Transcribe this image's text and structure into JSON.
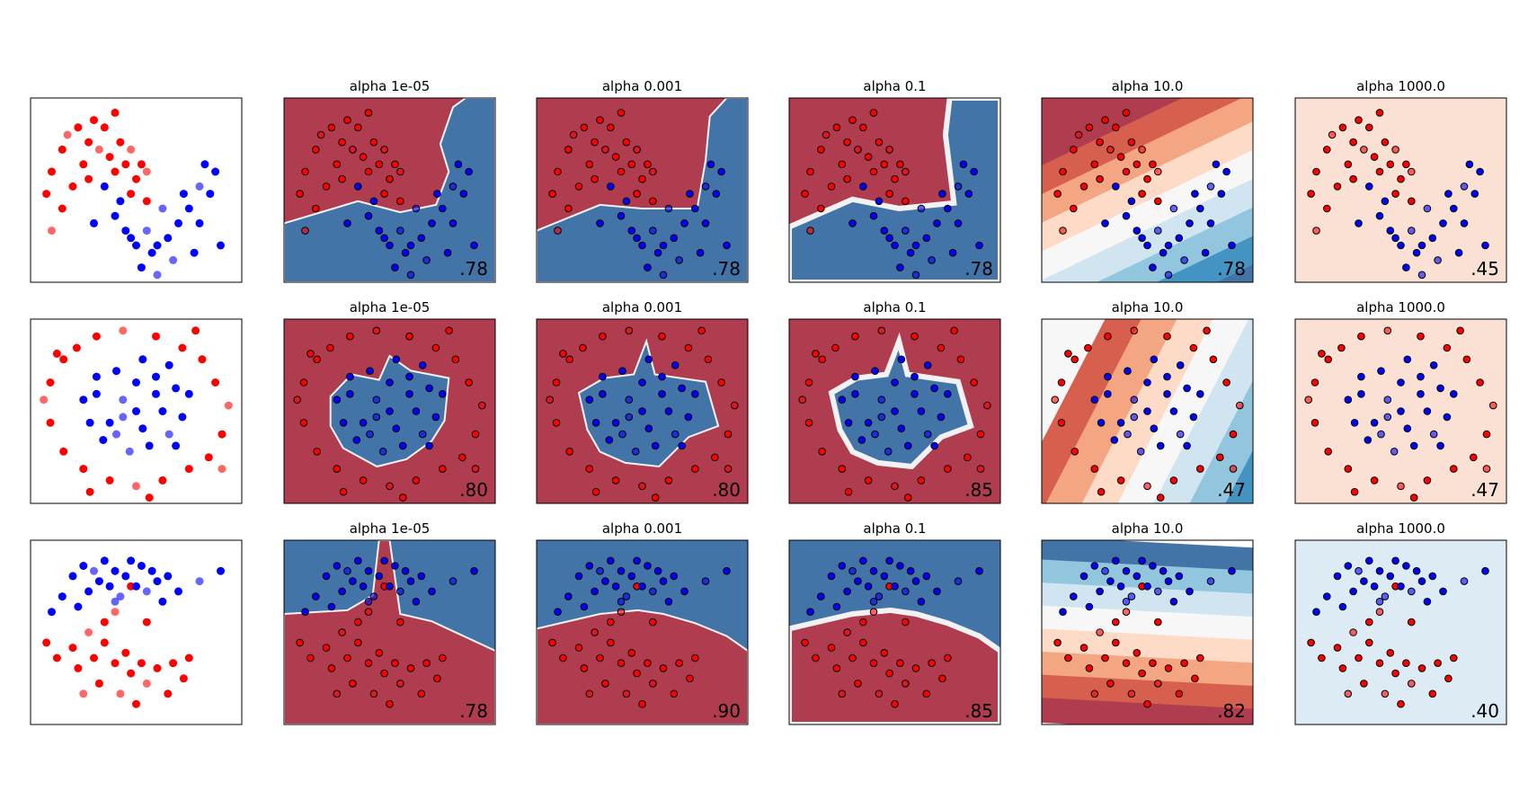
{
  "figure": {
    "colors": {
      "red_point": "#ff0000",
      "blue_point": "#0000ff",
      "strong_red": "#b03c4f",
      "strong_blue": "#4374a8",
      "boundary": "#f2f2f2",
      "light_red": "#fbe1d4",
      "light_blue": "#dcebf4"
    },
    "titles": [
      "alpha 1e-05",
      "alpha 0.001",
      "alpha 0.1",
      "alpha 10.0",
      "alpha 1000.0"
    ]
  },
  "chart_data": [
    {
      "type": "scatter",
      "dataset": "moons",
      "grid": false,
      "legend": "none",
      "xlim": [
        -1.6,
        2.4
      ],
      "ylim": [
        -1.0,
        1.5
      ],
      "series": [
        {
          "class": "red",
          "points": [
            [
              -1.3,
              0.2
            ],
            [
              -1.2,
              0.5
            ],
            [
              -1.0,
              0.8
            ],
            [
              -1.0,
              0.0
            ],
            [
              -0.9,
              1.0
            ],
            [
              -0.7,
              1.1
            ],
            [
              -0.6,
              0.6
            ],
            [
              -0.5,
              0.9
            ],
            [
              -0.4,
              1.2
            ],
            [
              -0.3,
              0.8
            ],
            [
              -0.2,
              1.1
            ],
            [
              0.0,
              1.3
            ],
            [
              0.1,
              0.9
            ],
            [
              0.2,
              0.6
            ],
            [
              0.3,
              0.8
            ],
            [
              0.4,
              0.4
            ],
            [
              0.5,
              0.6
            ],
            [
              0.6,
              0.1
            ],
            [
              -0.8,
              0.3
            ],
            [
              -1.2,
              -0.3
            ],
            [
              0.0,
              0.5
            ],
            [
              -0.5,
              0.4
            ],
            [
              0.3,
              0.2
            ],
            [
              -0.1,
              0.7
            ],
            [
              0.6,
              0.5
            ]
          ]
        },
        {
          "class": "blue",
          "points": [
            [
              -0.2,
              0.3
            ],
            [
              0.0,
              -0.1
            ],
            [
              0.2,
              -0.3
            ],
            [
              0.4,
              -0.5
            ],
            [
              0.6,
              -0.3
            ],
            [
              0.8,
              -0.5
            ],
            [
              1.0,
              -0.4
            ],
            [
              1.2,
              -0.2
            ],
            [
              1.4,
              0.0
            ],
            [
              1.6,
              0.3
            ],
            [
              1.7,
              0.6
            ],
            [
              1.8,
              0.2
            ],
            [
              1.9,
              0.5
            ],
            [
              1.3,
              0.2
            ],
            [
              0.9,
              0.0
            ],
            [
              0.7,
              -0.6
            ],
            [
              0.5,
              -0.8
            ],
            [
              0.3,
              -0.4
            ],
            [
              1.5,
              -0.6
            ],
            [
              1.1,
              -0.7
            ],
            [
              -0.4,
              -0.2
            ],
            [
              0.1,
              0.1
            ],
            [
              1.6,
              -0.2
            ],
            [
              2.0,
              -0.5
            ],
            [
              0.8,
              -0.9
            ]
          ]
        }
      ],
      "panels": [
        {
          "title": "alpha 1e-05",
          "score": ".78",
          "style": "moons_hard"
        },
        {
          "title": "alpha 0.001",
          "score": ".78",
          "style": "moons_hard"
        },
        {
          "title": "alpha 0.1",
          "score": ".78",
          "style": "moons_soft"
        },
        {
          "title": "alpha 10.0",
          "score": ".78",
          "style": "moons_bands"
        },
        {
          "title": "alpha 1000.0",
          "score": ".45",
          "style": "flat_red"
        }
      ]
    },
    {
      "type": "scatter",
      "dataset": "circles",
      "grid": false,
      "legend": "none",
      "xlim": [
        -1.6,
        1.6
      ],
      "ylim": [
        -1.6,
        1.6
      ],
      "series": [
        {
          "class": "red",
          "points": [
            [
              -1.3,
              0.5
            ],
            [
              -1.1,
              0.9
            ],
            [
              -0.9,
              1.1
            ],
            [
              -0.6,
              1.3
            ],
            [
              -0.2,
              1.4
            ],
            [
              0.3,
              1.3
            ],
            [
              0.7,
              1.1
            ],
            [
              1.0,
              0.9
            ],
            [
              1.2,
              0.5
            ],
            [
              1.4,
              0.1
            ],
            [
              1.3,
              -0.4
            ],
            [
              1.1,
              -0.8
            ],
            [
              0.8,
              -1.0
            ],
            [
              0.4,
              -1.2
            ],
            [
              0.0,
              -1.3
            ],
            [
              -0.4,
              -1.2
            ],
            [
              -0.8,
              -1.0
            ],
            [
              -1.1,
              -0.7
            ],
            [
              -1.3,
              -0.2
            ],
            [
              -1.4,
              0.2
            ],
            [
              -0.7,
              -1.4
            ],
            [
              0.2,
              -1.5
            ],
            [
              0.9,
              1.4
            ],
            [
              -1.2,
              1.0
            ],
            [
              1.3,
              -1.0
            ]
          ]
        },
        {
          "class": "blue",
          "points": [
            [
              -0.8,
              0.2
            ],
            [
              -0.6,
              0.6
            ],
            [
              -0.4,
              -0.2
            ],
            [
              -0.3,
              0.7
            ],
            [
              -0.2,
              0.2
            ],
            [
              0.0,
              0.5
            ],
            [
              0.1,
              -0.3
            ],
            [
              0.3,
              0.6
            ],
            [
              0.4,
              0.0
            ],
            [
              0.5,
              -0.4
            ],
            [
              0.6,
              0.4
            ],
            [
              0.7,
              -0.1
            ],
            [
              -0.5,
              -0.5
            ],
            [
              0.2,
              -0.6
            ],
            [
              -0.1,
              -0.7
            ],
            [
              0.8,
              0.3
            ],
            [
              -0.7,
              -0.2
            ],
            [
              0.0,
              0.0
            ],
            [
              0.3,
              0.3
            ],
            [
              -0.3,
              -0.4
            ],
            [
              0.5,
              0.8
            ],
            [
              -0.6,
              0.3
            ],
            [
              0.6,
              -0.6
            ],
            [
              0.1,
              0.9
            ],
            [
              -0.2,
              -0.1
            ]
          ]
        }
      ],
      "panels": [
        {
          "title": "alpha 1e-05",
          "score": ".80",
          "style": "circles_hard"
        },
        {
          "title": "alpha 0.001",
          "score": ".80",
          "style": "circles_hard"
        },
        {
          "title": "alpha 0.1",
          "score": ".85",
          "style": "circles_soft"
        },
        {
          "title": "alpha 10.0",
          "score": ".47",
          "style": "circles_bands"
        },
        {
          "title": "alpha 1000.0",
          "score": ".47",
          "style": "flat_red"
        }
      ]
    },
    {
      "type": "scatter",
      "dataset": "linear",
      "grid": false,
      "legend": "none",
      "xlim": [
        -1.6,
        2.4
      ],
      "ylim": [
        -2.2,
        1.4
      ],
      "series": [
        {
          "class": "red",
          "points": [
            [
              -1.3,
              -0.6
            ],
            [
              -1.1,
              -0.9
            ],
            [
              -0.8,
              -0.7
            ],
            [
              -0.7,
              -1.1
            ],
            [
              -0.5,
              -0.4
            ],
            [
              -0.4,
              -0.9
            ],
            [
              -0.3,
              -1.4
            ],
            [
              -0.2,
              -0.6
            ],
            [
              0.0,
              -1.0
            ],
            [
              0.1,
              -1.6
            ],
            [
              0.2,
              -0.8
            ],
            [
              0.3,
              -1.2
            ],
            [
              0.4,
              -1.8
            ],
            [
              0.5,
              -1.0
            ],
            [
              0.6,
              -1.4
            ],
            [
              0.8,
              -1.1
            ],
            [
              1.0,
              -1.6
            ],
            [
              1.1,
              -1.0
            ],
            [
              1.3,
              -1.3
            ],
            [
              0.0,
              0.0
            ],
            [
              0.3,
              0.5
            ],
            [
              -0.2,
              -0.2
            ],
            [
              0.6,
              -0.2
            ],
            [
              1.4,
              -0.9
            ],
            [
              -0.6,
              -1.6
            ]
          ]
        },
        {
          "class": "blue",
          "points": [
            [
              -1.0,
              0.3
            ],
            [
              -0.8,
              0.7
            ],
            [
              -0.6,
              0.9
            ],
            [
              -0.5,
              0.4
            ],
            [
              -0.4,
              0.8
            ],
            [
              -0.3,
              0.6
            ],
            [
              -0.2,
              1.0
            ],
            [
              -0.1,
              0.5
            ],
            [
              0.0,
              0.8
            ],
            [
              0.1,
              0.3
            ],
            [
              0.2,
              0.7
            ],
            [
              0.3,
              1.0
            ],
            [
              0.4,
              0.5
            ],
            [
              0.5,
              0.9
            ],
            [
              0.6,
              0.4
            ],
            [
              0.7,
              0.8
            ],
            [
              0.8,
              0.6
            ],
            [
              1.0,
              0.7
            ],
            [
              1.2,
              0.4
            ],
            [
              1.6,
              0.6
            ],
            [
              2.0,
              0.8
            ],
            [
              -0.7,
              0.1
            ],
            [
              0.9,
              0.2
            ],
            [
              -1.2,
              0.0
            ],
            [
              0.0,
              0.2
            ]
          ]
        }
      ],
      "panels": [
        {
          "title": "alpha 1e-05",
          "score": ".78",
          "style": "linear_hard"
        },
        {
          "title": "alpha 0.001",
          "score": ".90",
          "style": "linear_hard"
        },
        {
          "title": "alpha 0.1",
          "score": ".85",
          "style": "linear_soft"
        },
        {
          "title": "alpha 10.0",
          "score": ".82",
          "style": "linear_bands"
        },
        {
          "title": "alpha 1000.0",
          "score": ".40",
          "style": "flat_blue"
        }
      ]
    }
  ]
}
